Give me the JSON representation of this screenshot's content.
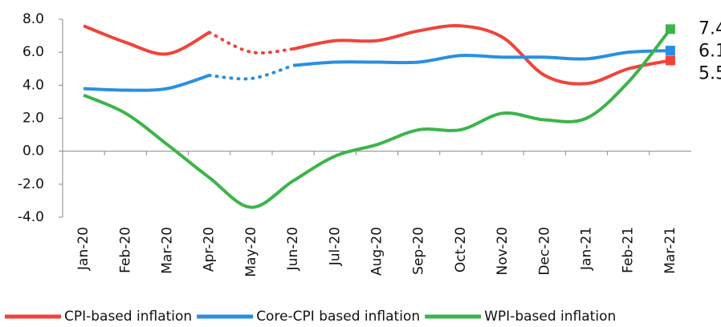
{
  "chart_data": {
    "type": "line",
    "categories": [
      "Jan-20",
      "Feb-20",
      "Mar-20",
      "Apr-20",
      "May-20",
      "Jun-20",
      "Jul-20",
      "Aug-20",
      "Sep-20",
      "Oct-20",
      "Nov-20",
      "Dec-20",
      "Jan-21",
      "Feb-21",
      "Mar-21"
    ],
    "series": [
      {
        "name": "CPI-based inflation",
        "color": "#f0443a",
        "values": [
          7.6,
          6.6,
          5.9,
          7.2,
          null,
          6.2,
          6.7,
          6.7,
          7.3,
          7.6,
          6.9,
          4.6,
          4.1,
          5.0,
          5.5
        ]
      },
      {
        "name": "Core-CPI based inflation",
        "color": "#2a8fe0",
        "values": [
          3.8,
          3.7,
          3.8,
          4.6,
          null,
          5.2,
          5.4,
          5.4,
          5.4,
          5.8,
          5.7,
          5.7,
          5.6,
          6.0,
          6.1
        ]
      },
      {
        "name": "WPI-based inflation",
        "color": "#3cb44a",
        "values": [
          3.4,
          2.3,
          0.4,
          -1.6,
          -3.4,
          -1.8,
          -0.3,
          0.4,
          1.3,
          1.3,
          2.3,
          1.9,
          2.0,
          4.2,
          7.4
        ]
      }
    ],
    "ylim": [
      -4,
      8
    ],
    "yticks": [
      {
        "value": -4,
        "label": "-4.0"
      },
      {
        "value": -2,
        "label": "-2.0"
      },
      {
        "value": 0,
        "label": "0.0"
      },
      {
        "value": 2,
        "label": "2.0"
      },
      {
        "value": 4,
        "label": "4.0"
      },
      {
        "value": 6,
        "label": "6.0"
      },
      {
        "value": 8,
        "label": "8.0"
      }
    ],
    "legend": "bottom"
  }
}
